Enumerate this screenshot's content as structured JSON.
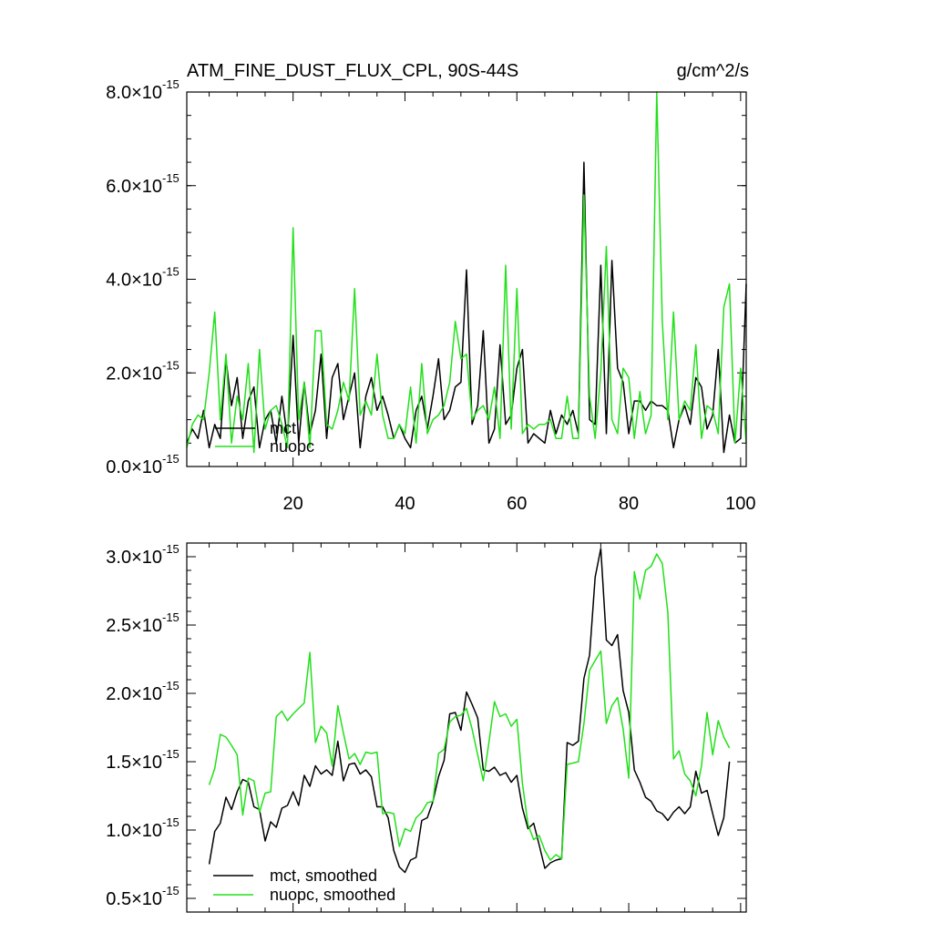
{
  "figure": {
    "title": "ATM_FINE_DUST_FLUX_CPL, 90S-44S",
    "units": "g/cm^2/s"
  },
  "colors": {
    "mct": "#000000",
    "nuopc": "#22e01a",
    "axis": "#000000"
  },
  "chart_data": [
    {
      "type": "line",
      "title": "ATM_FINE_DUST_FLUX_CPL, 90S-44S",
      "ylabel": "g/cm^2/s",
      "xlim": [
        1,
        101
      ],
      "ylim": [
        0.0,
        8.0
      ],
      "y_scale_exponent": -15,
      "x_ticks": [
        20,
        40,
        60,
        80,
        100
      ],
      "x_tick_labels": [
        "20",
        "40",
        "60",
        "80",
        "100"
      ],
      "y_ticks": [
        0.0,
        2.0,
        4.0,
        6.0,
        8.0
      ],
      "y_tick_labels": [
        "0.0×10",
        "2.0×10",
        "4.0×10",
        "6.0×10",
        "8.0×10"
      ],
      "y_tick_sup": "-15",
      "legend": {
        "location": "lower-left",
        "entries": [
          "mct",
          "nuopc"
        ]
      },
      "x": [
        1,
        2,
        3,
        4,
        5,
        6,
        7,
        8,
        9,
        10,
        11,
        12,
        13,
        14,
        15,
        16,
        17,
        18,
        19,
        20,
        21,
        22,
        23,
        24,
        25,
        26,
        27,
        28,
        29,
        30,
        31,
        32,
        33,
        34,
        35,
        36,
        37,
        38,
        39,
        40,
        41,
        42,
        43,
        44,
        45,
        46,
        47,
        48,
        49,
        50,
        51,
        52,
        53,
        54,
        55,
        56,
        57,
        58,
        59,
        60,
        61,
        62,
        63,
        64,
        65,
        66,
        67,
        68,
        69,
        70,
        71,
        72,
        73,
        74,
        75,
        76,
        77,
        78,
        79,
        80,
        81,
        82,
        83,
        84,
        85,
        86,
        87,
        88,
        89,
        90,
        91,
        92,
        93,
        94,
        95,
        96,
        97,
        98,
        99,
        100,
        101
      ],
      "series": [
        {
          "name": "mct",
          "values": [
            0.5,
            0.8,
            0.6,
            1.2,
            0.4,
            0.9,
            0.6,
            2.3,
            1.3,
            1.9,
            0.6,
            1.4,
            1.7,
            0.4,
            1.0,
            1.2,
            0.5,
            1.5,
            0.6,
            2.8,
            0.5,
            1.8,
            0.7,
            1.2,
            2.4,
            0.6,
            1.9,
            2.2,
            1.0,
            1.5,
            2.0,
            0.4,
            1.5,
            1.9,
            1.2,
            1.5,
            1.1,
            0.6,
            0.9,
            0.6,
            0.4,
            1.2,
            1.5,
            0.8,
            1.5,
            2.3,
            1.0,
            1.2,
            1.7,
            1.8,
            4.2,
            0.9,
            1.3,
            2.9,
            0.5,
            0.8,
            2.6,
            0.9,
            1.1,
            2.1,
            2.5,
            0.5,
            0.7,
            0.6,
            0.5,
            1.2,
            0.7,
            1.1,
            0.9,
            1.2,
            0.7,
            6.5,
            1.0,
            0.9,
            4.3,
            0.7,
            4.4,
            2.1,
            1.8,
            0.7,
            1.4,
            1.4,
            1.2,
            1.4,
            1.3,
            1.3,
            1.2,
            0.4,
            1.0,
            1.3,
            0.9,
            1.9,
            1.7,
            0.8,
            1.1,
            2.5,
            0.3,
            1.1,
            0.5,
            0.6,
            3.9
          ]
        },
        {
          "name": "nuopc",
          "values": [
            0.4,
            0.9,
            1.1,
            1.0,
            2.0,
            3.3,
            1.0,
            2.4,
            0.5,
            1.5,
            1.0,
            2.2,
            0.3,
            2.5,
            0.8,
            1.2,
            1.3,
            0.9,
            0.4,
            5.1,
            1.0,
            1.8,
            0.4,
            2.9,
            2.9,
            0.9,
            0.8,
            1.2,
            1.8,
            1.4,
            3.8,
            1.1,
            1.4,
            1.1,
            2.4,
            1.1,
            0.6,
            0.6,
            0.9,
            0.7,
            1.7,
            0.5,
            2.2,
            0.7,
            1.0,
            1.1,
            1.3,
            1.8,
            3.1,
            2.3,
            2.4,
            1.0,
            1.2,
            1.3,
            1.0,
            1.7,
            0.6,
            4.3,
            0.8,
            3.8,
            0.7,
            0.9,
            0.8,
            0.9,
            0.9,
            1.0,
            0.6,
            0.6,
            1.5,
            0.6,
            0.6,
            5.8,
            1.5,
            0.6,
            2.0,
            4.7,
            1.0,
            0.7,
            2.1,
            1.9,
            0.6,
            1.6,
            0.7,
            1.1,
            8.0,
            3.1,
            1.0,
            3.3,
            1.0,
            1.4,
            1.2,
            2.6,
            0.6,
            1.3,
            1.2,
            0.7,
            3.4,
            3.9,
            0.5,
            2.1,
            0.5
          ]
        }
      ]
    },
    {
      "type": "line",
      "title": "",
      "xlim": [
        1,
        101
      ],
      "ylim": [
        0.4,
        3.1
      ],
      "y_scale_exponent": -15,
      "x_ticks": [
        20,
        40,
        60,
        80,
        100
      ],
      "y_ticks": [
        0.5,
        1.0,
        1.5,
        2.0,
        2.5,
        3.0
      ],
      "y_tick_labels": [
        "0.5×10",
        "1.0×10",
        "1.5×10",
        "2.0×10",
        "2.5×10",
        "3.0×10"
      ],
      "y_tick_sup": "-15",
      "legend": {
        "location": "lower-left",
        "entries": [
          "mct, smoothed",
          "nuopc, smoothed"
        ]
      },
      "x": [
        5,
        6,
        7,
        8,
        9,
        10,
        11,
        12,
        13,
        14,
        15,
        16,
        17,
        18,
        19,
        20,
        21,
        22,
        23,
        24,
        25,
        26,
        27,
        28,
        29,
        30,
        31,
        32,
        33,
        34,
        35,
        36,
        37,
        38,
        39,
        40,
        41,
        42,
        43,
        44,
        45,
        46,
        47,
        48,
        49,
        50,
        51,
        52,
        53,
        54,
        55,
        56,
        57,
        58,
        59,
        60,
        61,
        62,
        63,
        64,
        65,
        66,
        67,
        68,
        69,
        70,
        71,
        72,
        73,
        74,
        75,
        76,
        77,
        78,
        79,
        80,
        81,
        82,
        83,
        84,
        85,
        86,
        87,
        88,
        89,
        90,
        91,
        92,
        93,
        94,
        95,
        96,
        97,
        98
      ],
      "series": [
        {
          "name": "mct, smoothed",
          "values": [
            0.75,
            0.99,
            1.05,
            1.24,
            1.15,
            1.28,
            1.37,
            1.35,
            1.17,
            1.15,
            0.92,
            1.06,
            1.02,
            1.16,
            1.18,
            1.28,
            1.18,
            1.4,
            1.32,
            1.47,
            1.41,
            1.44,
            1.4,
            1.65,
            1.36,
            1.48,
            1.49,
            1.41,
            1.44,
            1.39,
            1.17,
            1.17,
            1.09,
            0.85,
            0.73,
            0.69,
            0.78,
            0.8,
            1.07,
            1.09,
            1.21,
            1.39,
            1.51,
            1.85,
            1.86,
            1.73,
            2.01,
            1.92,
            1.82,
            1.44,
            1.43,
            1.46,
            1.4,
            1.42,
            1.35,
            1.4,
            1.16,
            1.01,
            1.05,
            0.89,
            0.72,
            0.76,
            0.78,
            0.79,
            1.64,
            1.62,
            1.65,
            2.11,
            2.28,
            2.85,
            3.06,
            2.39,
            2.35,
            2.43,
            2.02,
            1.86,
            1.44,
            1.35,
            1.24,
            1.21,
            1.14,
            1.12,
            1.07,
            1.13,
            1.17,
            1.12,
            1.17,
            1.43,
            1.27,
            1.29,
            1.12,
            0.96,
            1.09,
            1.5
          ]
        },
        {
          "name": "nuopc, smoothed",
          "values": [
            1.33,
            1.45,
            1.7,
            1.68,
            1.62,
            1.55,
            1.11,
            1.38,
            1.36,
            1.13,
            1.27,
            1.28,
            1.83,
            1.87,
            1.8,
            1.85,
            1.89,
            1.93,
            2.3,
            1.64,
            1.76,
            1.71,
            1.47,
            1.91,
            1.71,
            1.52,
            1.56,
            1.48,
            1.57,
            1.56,
            1.57,
            1.12,
            1.13,
            1.12,
            0.88,
            1.01,
            0.99,
            1.09,
            1.13,
            1.2,
            1.21,
            1.56,
            1.59,
            1.79,
            1.83,
            1.84,
            1.89,
            1.74,
            1.55,
            1.36,
            1.64,
            1.94,
            1.83,
            1.85,
            1.76,
            1.81,
            1.34,
            1.04,
            0.93,
            0.96,
            0.85,
            0.78,
            0.82,
            0.79,
            1.48,
            1.49,
            1.5,
            1.78,
            2.17,
            2.24,
            2.31,
            1.78,
            1.91,
            1.97,
            1.74,
            1.38,
            2.89,
            2.69,
            2.9,
            2.93,
            3.02,
            2.95,
            2.59,
            1.52,
            1.58,
            1.41,
            1.36,
            1.25,
            1.47,
            1.86,
            1.55,
            1.8,
            1.68,
            1.6
          ]
        }
      ]
    }
  ]
}
